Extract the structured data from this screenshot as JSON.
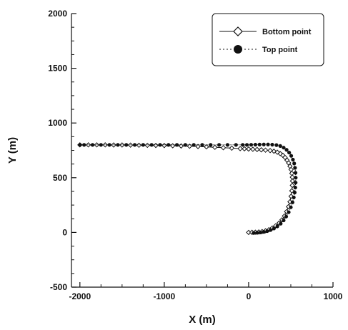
{
  "chart_data": {
    "type": "scatter",
    "xlabel": "X (m)",
    "ylabel": "Y (m)",
    "xlim": [
      -2100,
      1000
    ],
    "ylim": [
      -500,
      2000
    ],
    "x_ticks": [
      -2000,
      -1000,
      0,
      1000
    ],
    "y_ticks": [
      -500,
      0,
      500,
      1000,
      1500,
      2000
    ],
    "x_tick_labels": [
      "-2000",
      "-1000",
      "0",
      "1000"
    ],
    "y_tick_labels": [
      "-500",
      "0",
      "500",
      "1000",
      "1500",
      "2000"
    ],
    "grid": false,
    "legend_position": "top-right",
    "series": [
      {
        "name": "Bottom point",
        "marker": "open-diamond",
        "color": "#111111",
        "x": [
          0,
          40,
          80,
          120,
          160,
          200,
          240,
          280,
          320,
          360,
          395,
          425,
          450,
          472,
          490,
          503,
          512,
          518,
          520,
          518,
          512,
          503,
          490,
          474,
          455,
          432,
          405,
          375,
          340,
          300,
          255,
          200,
          150,
          100,
          50,
          0,
          -50,
          -100,
          -200,
          -300,
          -400,
          -500,
          -600,
          -700,
          -800,
          -900,
          -1000,
          -1100,
          -1200,
          -1300,
          -1400,
          -1500,
          -1600,
          -1700,
          -1800,
          -1900,
          -2000
        ],
        "y": [
          0,
          1,
          2,
          4,
          8,
          15,
          25,
          40,
          60,
          85,
          115,
          150,
          190,
          235,
          280,
          330,
          380,
          430,
          470,
          505,
          540,
          575,
          605,
          635,
          660,
          685,
          705,
          720,
          733,
          742,
          748,
          752,
          755,
          758,
          760,
          762,
          764,
          766,
          770,
          774,
          778,
          782,
          785,
          788,
          790,
          792,
          794,
          795,
          796,
          797,
          798,
          799,
          799,
          800,
          800,
          800,
          800
        ]
      },
      {
        "name": "Top point",
        "marker": "filled-circle",
        "color": "#111111",
        "x": [
          60,
          100,
          140,
          180,
          220,
          260,
          300,
          340,
          380,
          415,
          445,
          475,
          500,
          520,
          535,
          546,
          553,
          557,
          558,
          556,
          550,
          540,
          525,
          505,
          480,
          450,
          415,
          375,
          330,
          280,
          230,
          180,
          130,
          80,
          30,
          -20,
          -70,
          -150,
          -250,
          -350,
          -450,
          -550,
          -650,
          -750,
          -850,
          -950,
          -1050,
          -1150,
          -1250,
          -1350,
          -1450,
          -1550,
          -1650,
          -1750,
          -1850,
          -1950,
          -2000
        ],
        "y": [
          -5,
          -3,
          0,
          5,
          12,
          22,
          36,
          55,
          80,
          110,
          145,
          185,
          230,
          275,
          320,
          365,
          410,
          455,
          500,
          545,
          590,
          630,
          665,
          700,
          730,
          755,
          775,
          790,
          798,
          802,
          804,
          804,
          803,
          802,
          801,
          800,
          800,
          800,
          800,
          800,
          800,
          800,
          800,
          800,
          800,
          800,
          800,
          800,
          800,
          800,
          800,
          800,
          800,
          800,
          800,
          800,
          800
        ]
      }
    ]
  }
}
